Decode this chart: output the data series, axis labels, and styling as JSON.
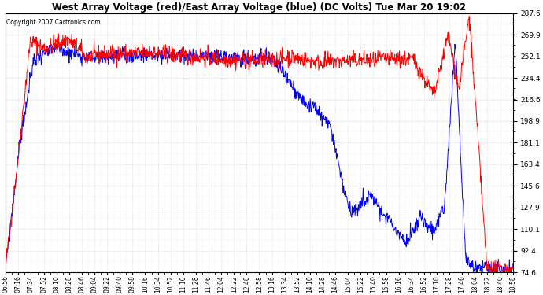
{
  "title": "West Array Voltage (red)/East Array Voltage (blue) (DC Volts) Tue Mar 20 19:02",
  "copyright": "Copyright 2007 Cartronics.com",
  "yticks": [
    74.6,
    92.4,
    110.1,
    127.9,
    145.6,
    163.4,
    181.1,
    198.9,
    216.6,
    234.4,
    252.1,
    269.9,
    287.6
  ],
  "ymin": 74.6,
  "ymax": 287.6,
  "red_color": "#ff0000",
  "blue_color": "#0000ff",
  "bg_color": "#ffffff",
  "grid_color": "#cccccc",
  "xtick_labels": [
    "06:56",
    "07:16",
    "07:34",
    "07:52",
    "08:10",
    "08:28",
    "08:46",
    "09:04",
    "09:22",
    "09:40",
    "09:58",
    "10:16",
    "10:34",
    "10:52",
    "11:10",
    "11:28",
    "11:46",
    "12:04",
    "12:22",
    "12:40",
    "12:58",
    "13:16",
    "13:34",
    "13:52",
    "14:10",
    "14:28",
    "14:46",
    "15:04",
    "15:22",
    "15:40",
    "15:58",
    "16:16",
    "16:34",
    "16:52",
    "17:10",
    "17:28",
    "17:46",
    "18:04",
    "18:22",
    "18:40",
    "18:58"
  ]
}
